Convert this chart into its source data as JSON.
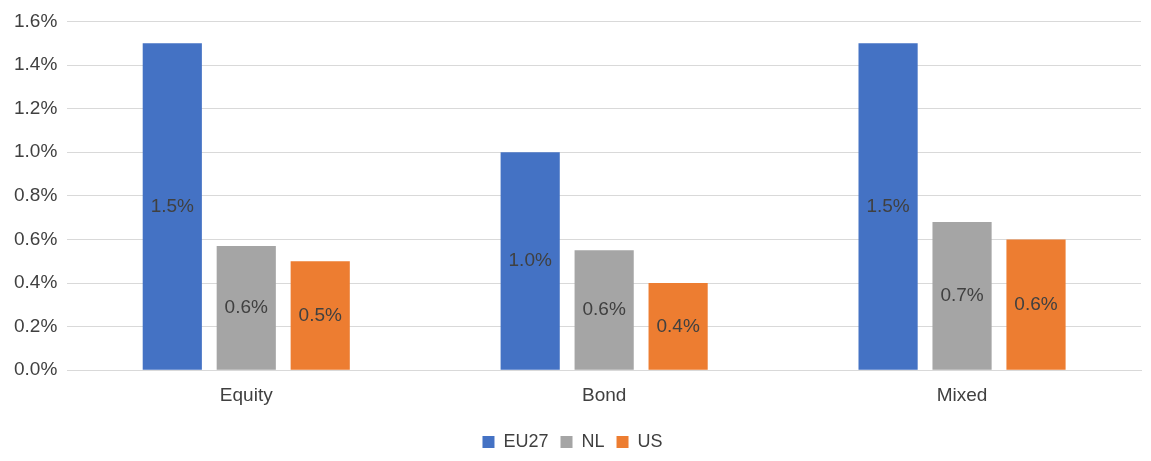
{
  "chart_data": {
    "type": "bar",
    "categories": [
      "Equity",
      "Bond",
      "Mixed"
    ],
    "series": [
      {
        "name": "EU27",
        "color": "#4472c4",
        "values": [
          1.5,
          1.0,
          1.5
        ],
        "value_labels": [
          "1.5%",
          "1.0%",
          "1.5%"
        ]
      },
      {
        "name": "NL",
        "color": "#a5a5a5",
        "values": [
          0.57,
          0.55,
          0.68
        ],
        "value_labels": [
          "0.6%",
          "0.6%",
          "0.7%"
        ]
      },
      {
        "name": "US",
        "color": "#ed7d31",
        "values": [
          0.5,
          0.4,
          0.6
        ],
        "value_labels": [
          "0.5%",
          "0.4%",
          "0.6%"
        ]
      }
    ],
    "ylim": [
      0,
      1.6
    ],
    "yticks": [
      {
        "value": 0,
        "label": "0.0%"
      },
      {
        "value": 0.2,
        "label": "0.2%"
      },
      {
        "value": 0.4,
        "label": "0.4%"
      },
      {
        "value": 0.6,
        "label": "0.6%"
      },
      {
        "value": 0.8,
        "label": "0.8%"
      },
      {
        "value": 1.0,
        "label": "1.0%"
      },
      {
        "value": 1.2,
        "label": "1.2%"
      },
      {
        "value": 1.4,
        "label": "1.4%"
      },
      {
        "value": 1.6,
        "label": "1.6%"
      }
    ],
    "grid": "y",
    "legend": "bottom"
  }
}
